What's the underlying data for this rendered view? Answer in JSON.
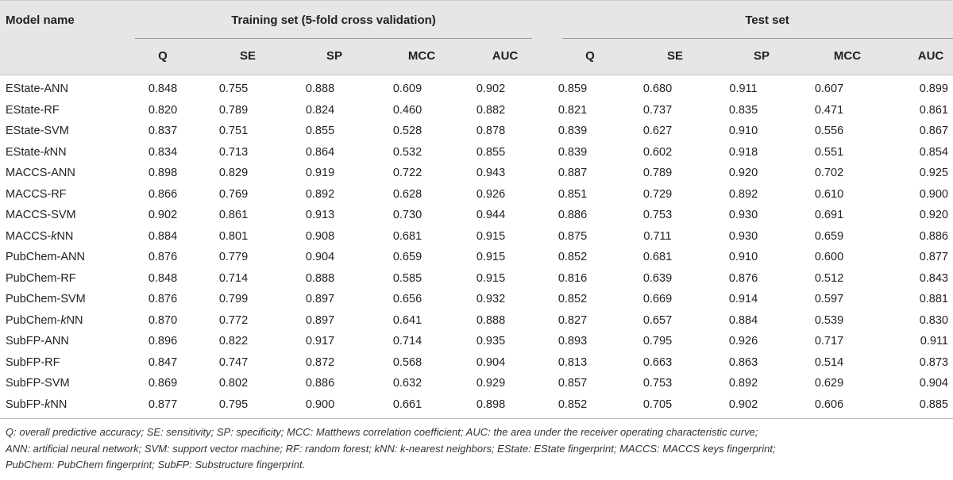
{
  "header": {
    "model_name": "Model name",
    "training_group": "Training set (5-fold cross validation)",
    "test_group": "Test set",
    "training_cols": [
      "Q",
      "SE",
      "SP",
      "MCC",
      "AUC"
    ],
    "test_cols": [
      "Q",
      "SE",
      "SP",
      "MCC",
      "AUC"
    ]
  },
  "rows": [
    {
      "prefix": "EState-",
      "k": "",
      "suffix": "ANN",
      "train": [
        "0.848",
        "0.755",
        "0.888",
        "0.609",
        "0.902"
      ],
      "test": [
        "0.859",
        "0.680",
        "0.911",
        "0.607",
        "0.899"
      ]
    },
    {
      "prefix": "EState-",
      "k": "",
      "suffix": "RF",
      "train": [
        "0.820",
        "0.789",
        "0.824",
        "0.460",
        "0.882"
      ],
      "test": [
        "0.821",
        "0.737",
        "0.835",
        "0.471",
        "0.861"
      ]
    },
    {
      "prefix": "EState-",
      "k": "",
      "suffix": "SVM",
      "train": [
        "0.837",
        "0.751",
        "0.855",
        "0.528",
        "0.878"
      ],
      "test": [
        "0.839",
        "0.627",
        "0.910",
        "0.556",
        "0.867"
      ]
    },
    {
      "prefix": "EState-",
      "k": "k",
      "suffix": "NN",
      "train": [
        "0.834",
        "0.713",
        "0.864",
        "0.532",
        "0.855"
      ],
      "test": [
        "0.839",
        "0.602",
        "0.918",
        "0.551",
        "0.854"
      ]
    },
    {
      "prefix": "MACCS-",
      "k": "",
      "suffix": "ANN",
      "train": [
        "0.898",
        "0.829",
        "0.919",
        "0.722",
        "0.943"
      ],
      "test": [
        "0.887",
        "0.789",
        "0.920",
        "0.702",
        "0.925"
      ]
    },
    {
      "prefix": "MACCS-",
      "k": "",
      "suffix": "RF",
      "train": [
        "0.866",
        "0.769",
        "0.892",
        "0.628",
        "0.926"
      ],
      "test": [
        "0.851",
        "0.729",
        "0.892",
        "0.610",
        "0.900"
      ]
    },
    {
      "prefix": "MACCS-",
      "k": "",
      "suffix": "SVM",
      "train": [
        "0.902",
        "0.861",
        "0.913",
        "0.730",
        "0.944"
      ],
      "test": [
        "0.886",
        "0.753",
        "0.930",
        "0.691",
        "0.920"
      ]
    },
    {
      "prefix": "MACCS-",
      "k": "k",
      "suffix": "NN",
      "train": [
        "0.884",
        "0.801",
        "0.908",
        "0.681",
        "0.915"
      ],
      "test": [
        "0.875",
        "0.711",
        "0.930",
        "0.659",
        "0.886"
      ]
    },
    {
      "prefix": "PubChem-",
      "k": "",
      "suffix": "ANN",
      "train": [
        "0.876",
        "0.779",
        "0.904",
        "0.659",
        "0.915"
      ],
      "test": [
        "0.852",
        "0.681",
        "0.910",
        "0.600",
        "0.877"
      ]
    },
    {
      "prefix": "PubChem-",
      "k": "",
      "suffix": "RF",
      "train": [
        "0.848",
        "0.714",
        "0.888",
        "0.585",
        "0.915"
      ],
      "test": [
        "0.816",
        "0.639",
        "0.876",
        "0.512",
        "0.843"
      ]
    },
    {
      "prefix": "PubChem-",
      "k": "",
      "suffix": "SVM",
      "train": [
        "0.876",
        "0.799",
        "0.897",
        "0.656",
        "0.932"
      ],
      "test": [
        "0.852",
        "0.669",
        "0.914",
        "0.597",
        "0.881"
      ]
    },
    {
      "prefix": "PubChem-",
      "k": "k",
      "suffix": "NN",
      "train": [
        "0.870",
        "0.772",
        "0.897",
        "0.641",
        "0.888"
      ],
      "test": [
        "0.827",
        "0.657",
        "0.884",
        "0.539",
        "0.830"
      ]
    },
    {
      "prefix": "SubFP-",
      "k": "",
      "suffix": "ANN",
      "train": [
        "0.896",
        "0.822",
        "0.917",
        "0.714",
        "0.935"
      ],
      "test": [
        "0.893",
        "0.795",
        "0.926",
        "0.717",
        "0.911"
      ]
    },
    {
      "prefix": "SubFP-",
      "k": "",
      "suffix": "RF",
      "train": [
        "0.847",
        "0.747",
        "0.872",
        "0.568",
        "0.904"
      ],
      "test": [
        "0.813",
        "0.663",
        "0.863",
        "0.514",
        "0.873"
      ]
    },
    {
      "prefix": "SubFP-",
      "k": "",
      "suffix": "SVM",
      "train": [
        "0.869",
        "0.802",
        "0.886",
        "0.632",
        "0.929"
      ],
      "test": [
        "0.857",
        "0.753",
        "0.892",
        "0.629",
        "0.904"
      ]
    },
    {
      "prefix": "SubFP-",
      "k": "k",
      "suffix": "NN",
      "train": [
        "0.877",
        "0.795",
        "0.900",
        "0.661",
        "0.898"
      ],
      "test": [
        "0.852",
        "0.705",
        "0.902",
        "0.606",
        "0.885"
      ]
    }
  ],
  "footnote": [
    "Q: overall predictive accuracy; SE: sensitivity; SP: specificity; MCC: Matthews correlation coefficient; AUC: the area under the receiver operating characteristic curve;",
    "ANN: artificial neural network; SVM: support vector machine; RF: random forest; kNN: k-nearest neighbors; EState: EState fingerprint; MACCS: MACCS keys fingerprint;",
    "PubChem: PubChem fingerprint; SubFP: Substructure fingerprint."
  ]
}
